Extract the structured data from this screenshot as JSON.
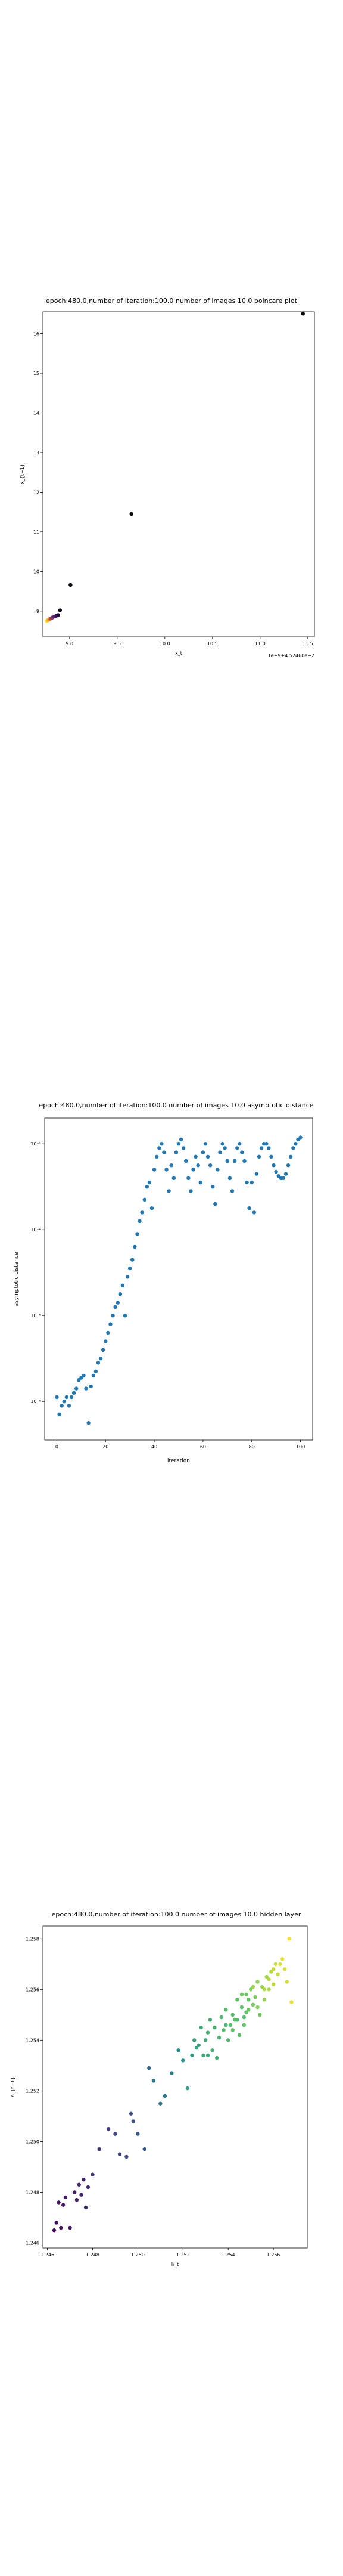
{
  "chart_data": [
    {
      "type": "scatter",
      "title": "epoch:480.0,number of iteration:100.0 number of images 10.0 poincare plot",
      "xlabel": "x_t",
      "ylabel": "x_{t+1}",
      "offset_text": "1e−9+4.52460e−2",
      "x_ticks": [
        "9.0",
        "9.5",
        "10.0",
        "10.5",
        "11.0",
        "11.5"
      ],
      "y_ticks": [
        "9",
        "10",
        "11",
        "12",
        "13",
        "14",
        "15",
        "16"
      ],
      "xlim": [
        8.72,
        11.57
      ],
      "ylim": [
        8.35,
        16.55
      ],
      "x": [
        8.76,
        8.77,
        8.78,
        8.79,
        8.8,
        8.81,
        8.82,
        8.84,
        8.86,
        8.88,
        8.9,
        9.01,
        9.65,
        11.45
      ],
      "y": [
        8.75,
        8.77,
        8.78,
        8.8,
        8.81,
        8.82,
        8.84,
        8.86,
        8.88,
        8.9,
        9.02,
        9.66,
        11.45,
        16.5
      ],
      "colors": [
        "#fde725",
        "#fdc822",
        "#f9a825",
        "#e8852e",
        "#c7573f",
        "#a33d57",
        "#7e3068",
        "#5b1f6d",
        "#3d1363",
        "#200a3a",
        "#150821",
        "#090513",
        "#050309",
        "#000004"
      ]
    },
    {
      "type": "scatter",
      "title": "epoch:480.0,number of iteration:100.0  number of images 10.0 asymptotic distance",
      "xlabel": "iteration",
      "ylabel": "asymptotic distance",
      "scale": "log",
      "x_ticks": [
        "0",
        "20",
        "40",
        "60",
        "80",
        "100"
      ],
      "y_ticks": [
        "10⁻⁸",
        "10⁻⁶",
        "10⁻⁴",
        "10⁻²"
      ],
      "xlim": [
        -5,
        105
      ],
      "ylim_log10": [
        -8.9,
        -1.4
      ],
      "color": "#1f77b4",
      "x": [
        0,
        1,
        2,
        3,
        4,
        5,
        6,
        7,
        8,
        9,
        10,
        11,
        12,
        13,
        14,
        15,
        16,
        17,
        18,
        19,
        20,
        21,
        22,
        23,
        24,
        25,
        26,
        27,
        28,
        29,
        30,
        31,
        32,
        33,
        34,
        35,
        36,
        37,
        38,
        39,
        40,
        41,
        42,
        43,
        44,
        45,
        46,
        47,
        48,
        49,
        50,
        51,
        52,
        53,
        54,
        55,
        56,
        57,
        58,
        59,
        60,
        61,
        62,
        63,
        64,
        65,
        66,
        67,
        68,
        69,
        70,
        71,
        72,
        73,
        74,
        75,
        76,
        77,
        78,
        79,
        80,
        81,
        82,
        83,
        84,
        85,
        86,
        87,
        88,
        89,
        90,
        91,
        92,
        93,
        94,
        95,
        96,
        97,
        98,
        99,
        100
      ],
      "y_log10": [
        -7.9,
        -8.3,
        -8.1,
        -8.0,
        -7.9,
        -8.1,
        -7.9,
        -7.8,
        -7.7,
        -7.5,
        -7.45,
        -7.4,
        -7.7,
        -8.5,
        -7.65,
        -7.4,
        -7.3,
        -7.1,
        -7.0,
        -6.8,
        -6.6,
        -6.4,
        -6.2,
        -6.0,
        -5.8,
        -5.7,
        -5.5,
        -5.3,
        -6.0,
        -5.1,
        -4.9,
        -4.7,
        -4.4,
        -4.1,
        -3.8,
        -3.6,
        -3.3,
        -3.0,
        -2.9,
        -3.5,
        -2.6,
        -2.3,
        -2.1,
        -2.0,
        -2.2,
        -2.6,
        -3.1,
        -2.5,
        -2.8,
        -2.2,
        -2.0,
        -1.9,
        -2.1,
        -2.4,
        -2.8,
        -3.1,
        -2.6,
        -2.3,
        -2.5,
        -2.9,
        -2.2,
        -2.0,
        -2.3,
        -2.5,
        -3.0,
        -3.4,
        -2.6,
        -2.2,
        -2.0,
        -2.1,
        -2.4,
        -2.8,
        -3.1,
        -2.4,
        -2.1,
        -2.0,
        -2.2,
        -2.4,
        -2.9,
        -3.5,
        -2.9,
        -3.6,
        -2.7,
        -2.3,
        -2.1,
        -2.0,
        -2.0,
        -2.1,
        -2.3,
        -2.5,
        -2.65,
        -2.75,
        -2.8,
        -2.8,
        -2.7,
        -2.5,
        -2.3,
        -2.1,
        -2.0,
        -1.9,
        -1.85
      ]
    },
    {
      "type": "scatter",
      "title": "epoch:480.0,number of iteration:100.0  number of images 10.0 hidden layer",
      "xlabel": "h_t",
      "ylabel": "h_{t+1}",
      "x_ticks": [
        "1.246",
        "1.248",
        "1.250",
        "1.252",
        "1.254",
        "1.256"
      ],
      "y_ticks": [
        "1.246",
        "1.248",
        "1.250",
        "1.252",
        "1.254",
        "1.256",
        "1.258"
      ],
      "xlim": [
        1.2458,
        1.2575
      ],
      "ylim": [
        1.2458,
        1.2585
      ],
      "colormap": "viridis",
      "points": [
        [
          1.2463,
          1.2465,
          0.02
        ],
        [
          1.2464,
          1.2468,
          0.03
        ],
        [
          1.2466,
          1.2466,
          0.04
        ],
        [
          1.2465,
          1.2476,
          0.05
        ],
        [
          1.2467,
          1.2475,
          0.06
        ],
        [
          1.2468,
          1.2478,
          0.07
        ],
        [
          1.247,
          1.2466,
          0.06
        ],
        [
          1.2472,
          1.248,
          0.08
        ],
        [
          1.2473,
          1.2477,
          0.09
        ],
        [
          1.2474,
          1.2483,
          0.1
        ],
        [
          1.2475,
          1.2479,
          0.11
        ],
        [
          1.2476,
          1.2485,
          0.1
        ],
        [
          1.2477,
          1.2474,
          0.12
        ],
        [
          1.2478,
          1.2482,
          0.13
        ],
        [
          1.248,
          1.2487,
          0.14
        ],
        [
          1.2483,
          1.2497,
          0.16
        ],
        [
          1.2487,
          1.2505,
          0.18
        ],
        [
          1.249,
          1.2503,
          0.2
        ],
        [
          1.2492,
          1.2495,
          0.19
        ],
        [
          1.2495,
          1.2494,
          0.22
        ],
        [
          1.2497,
          1.2511,
          0.24
        ],
        [
          1.2498,
          1.2508,
          0.25
        ],
        [
          1.25,
          1.2503,
          0.27
        ],
        [
          1.2503,
          1.2497,
          0.28
        ],
        [
          1.2505,
          1.2529,
          0.35
        ],
        [
          1.2507,
          1.2524,
          0.38
        ],
        [
          1.251,
          1.2515,
          0.4
        ],
        [
          1.2512,
          1.2518,
          0.42
        ],
        [
          1.2515,
          1.2527,
          0.45
        ],
        [
          1.2518,
          1.2536,
          0.5
        ],
        [
          1.252,
          1.2532,
          0.52
        ],
        [
          1.2522,
          1.2521,
          0.55
        ],
        [
          1.2524,
          1.2534,
          0.56
        ],
        [
          1.2525,
          1.254,
          0.58
        ],
        [
          1.2526,
          1.2537,
          0.59
        ],
        [
          1.2528,
          1.2545,
          0.6
        ],
        [
          1.2529,
          1.2534,
          0.61
        ],
        [
          1.253,
          1.254,
          0.62
        ],
        [
          1.2531,
          1.2543,
          0.63
        ],
        [
          1.2532,
          1.2548,
          0.64
        ],
        [
          1.2533,
          1.2536,
          0.65
        ],
        [
          1.2534,
          1.2545,
          0.66
        ],
        [
          1.2535,
          1.2533,
          0.65
        ],
        [
          1.2536,
          1.2541,
          0.67
        ],
        [
          1.2537,
          1.2549,
          0.68
        ],
        [
          1.2538,
          1.2544,
          0.69
        ],
        [
          1.2539,
          1.2552,
          0.7
        ],
        [
          1.254,
          1.254,
          0.68
        ],
        [
          1.2541,
          1.2546,
          0.7
        ],
        [
          1.2542,
          1.255,
          0.71
        ],
        [
          1.2543,
          1.2548,
          0.72
        ],
        [
          1.2544,
          1.2556,
          0.73
        ],
        [
          1.2545,
          1.2542,
          0.71
        ],
        [
          1.2546,
          1.2553,
          0.74
        ],
        [
          1.2547,
          1.2546,
          0.73
        ],
        [
          1.2548,
          1.2558,
          0.76
        ],
        [
          1.2549,
          1.2552,
          0.77
        ],
        [
          1.255,
          1.256,
          0.79
        ],
        [
          1.2551,
          1.2554,
          0.78
        ],
        [
          1.2552,
          1.2557,
          0.8
        ],
        [
          1.2553,
          1.2563,
          0.82
        ],
        [
          1.2554,
          1.255,
          0.78
        ],
        [
          1.2555,
          1.2561,
          0.84
        ],
        [
          1.2556,
          1.2556,
          0.83
        ],
        [
          1.2557,
          1.2565,
          0.86
        ],
        [
          1.2558,
          1.256,
          0.87
        ],
        [
          1.2559,
          1.2567,
          0.88
        ],
        [
          1.256,
          1.2562,
          0.9
        ],
        [
          1.2561,
          1.257,
          0.91
        ],
        [
          1.2562,
          1.2566,
          0.92
        ],
        [
          1.2563,
          1.257,
          0.94
        ],
        [
          1.2565,
          1.2568,
          0.95
        ],
        [
          1.2566,
          1.2563,
          0.93
        ],
        [
          1.2567,
          1.258,
          0.99
        ],
        [
          1.2568,
          1.2555,
          0.96
        ],
        [
          1.2547,
          1.2549,
          0.7
        ],
        [
          1.2551,
          1.2561,
          0.85
        ],
        [
          1.2553,
          1.2553,
          0.8
        ],
        [
          1.2556,
          1.256,
          0.88
        ],
        [
          1.2544,
          1.2548,
          0.69
        ],
        [
          1.2542,
          1.2544,
          0.74
        ],
        [
          1.2549,
          1.2556,
          0.75
        ],
        [
          1.2539,
          1.2546,
          0.67
        ],
        [
          1.2546,
          1.2558,
          0.77
        ],
        [
          1.2548,
          1.2551,
          0.74
        ],
        [
          1.2531,
          1.2534,
          0.61
        ],
        [
          1.2527,
          1.2538,
          0.57
        ],
        [
          1.2558,
          1.2564,
          0.89
        ],
        [
          1.256,
          1.2568,
          0.92
        ],
        [
          1.2564,
          1.2572,
          0.96
        ]
      ]
    }
  ]
}
